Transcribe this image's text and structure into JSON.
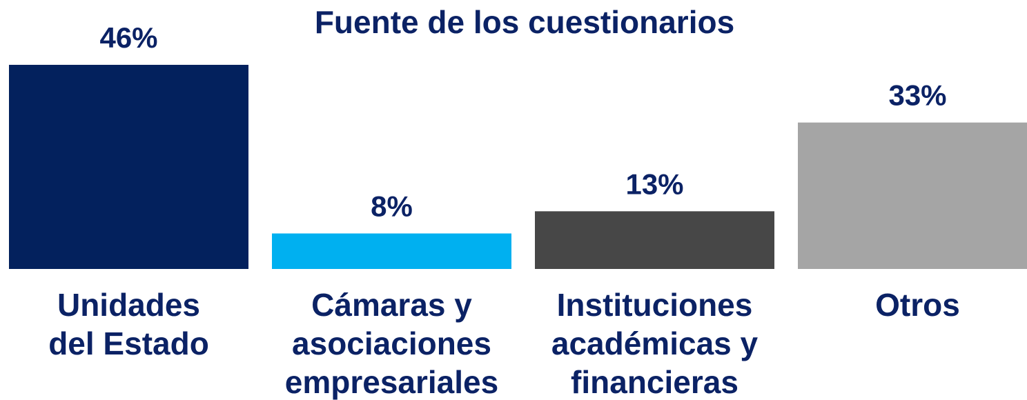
{
  "chart_data": {
    "type": "bar",
    "title": "Fuente de los cuestionarios",
    "categories": [
      "Unidades del Estado",
      "Cámaras y asociaciones empresariales",
      "Instituciones académicas y financieras",
      "Otros"
    ],
    "values": [
      46,
      8,
      13,
      33
    ],
    "value_labels": [
      "46%",
      "8%",
      "13%",
      "33%"
    ],
    "colors": [
      "#03215d",
      "#00b0f0",
      "#474747",
      "#a5a5a5"
    ]
  }
}
